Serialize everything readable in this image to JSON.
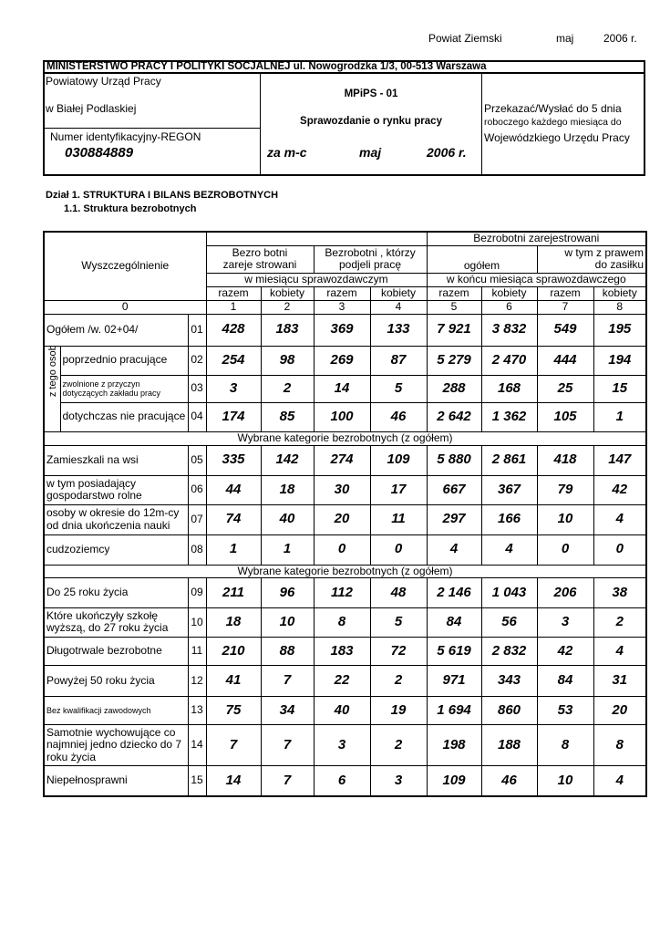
{
  "header": {
    "district": "Powiat Ziemski",
    "month": "maj",
    "year": "2006 r."
  },
  "ministry": "MINISTERSTWO PRACY I POLITYKI SOCJALNEJ ul. Nowogrodzka 1/3, 00-513 Warszawa",
  "office": {
    "name": "Powiatowy  Urząd  Pracy",
    "city": "w Białej Podlaskiej",
    "id_label": "Numer identyfikacyjny-REGON",
    "regon": "030884889"
  },
  "form": {
    "code": "MPiPS - 01",
    "name": "Sprawozdanie o rynku pracy",
    "period_label": "za m-c",
    "month": "maj",
    "year": "2006 r."
  },
  "send": [
    "Przekazać/Wysłać do 5 dnia",
    "roboczego każdego miesiąca do",
    "Wojewódzkiego Urzędu Pracy"
  ],
  "section": "Dział 1. STRUKTURA I BILANS BEZROBOTNYCH",
  "subsection": "1.1. Struktura bezrobotnych",
  "table": {
    "header_label": "Wyszczególnienie",
    "group_header": "Bezrobotni zarejestrowani",
    "col_headers": [
      [
        "Bezro botni",
        "zareje strowani"
      ],
      [
        "Bezrobotni , którzy",
        "podjeli  pracę"
      ],
      [
        "ogółem"
      ],
      [
        "w tym z  prawem",
        "do zasiłku"
      ]
    ],
    "period_headers": [
      "w  miesiącu sprawozdawczym",
      "w końcu  miesiąca sprawozdawczego"
    ],
    "sub_headers": [
      "razem",
      "kobiety",
      "razem",
      "kobiety",
      "razem",
      "kobiety",
      "razem",
      "kobiety"
    ],
    "col_numbers": [
      "0",
      "1",
      "2",
      "3",
      "4",
      "5",
      "6",
      "7",
      "8"
    ],
    "group_label": "z tego osoby",
    "rows": [
      {
        "label": "Ogółem /w. 02+04/",
        "no": "01",
        "values": [
          428,
          183,
          369,
          133,
          "7 921",
          "3 832",
          549,
          195
        ]
      },
      {
        "label": "poprzednio pracujące",
        "no": "02",
        "values": [
          254,
          98,
          269,
          87,
          "5 279",
          "2 470",
          444,
          194
        ]
      },
      {
        "label": "zwolnione z przyczyn dotyczących zakładu pracy",
        "no": "03",
        "values": [
          3,
          2,
          14,
          5,
          288,
          168,
          25,
          15
        ]
      },
      {
        "label": "dotychczas nie pracujące",
        "no": "04",
        "values": [
          174,
          85,
          100,
          46,
          "2 642",
          "1 362",
          105,
          1
        ]
      },
      {
        "note": "Wybrane kategorie bezrobotnych (z ogółem)"
      },
      {
        "label": "Zamieszkali na wsi",
        "no": "05",
        "values": [
          335,
          142,
          274,
          109,
          "5 880",
          "2 861",
          418,
          147
        ]
      },
      {
        "label": "w tym posiadający gospodarstwo rolne",
        "no": "06",
        "values": [
          44,
          18,
          30,
          17,
          667,
          367,
          79,
          42
        ]
      },
      {
        "label": "osoby w okresie do 12m-cy od dnia ukończenia nauki",
        "no": "07",
        "values": [
          74,
          40,
          20,
          11,
          297,
          166,
          10,
          4
        ]
      },
      {
        "label": "cudzoziemcy",
        "no": "08",
        "values": [
          1,
          1,
          0,
          0,
          4,
          4,
          0,
          0
        ]
      },
      {
        "note": "Wybrane kategorie bezrobotnych (z ogółem)"
      },
      {
        "label": "Do 25 roku życia",
        "no": "09",
        "values": [
          211,
          96,
          112,
          48,
          "2 146",
          "1 043",
          206,
          38
        ]
      },
      {
        "label": "Które ukończyły szkołę wyższą, do 27 roku życia",
        "no": "10",
        "values": [
          18,
          10,
          8,
          5,
          84,
          56,
          3,
          2
        ]
      },
      {
        "label": "Długotrwale bezrobotne",
        "no": "11",
        "values": [
          210,
          88,
          183,
          72,
          "5 619",
          "2 832",
          42,
          4
        ]
      },
      {
        "label": "Powyżej 50 roku życia",
        "no": "12",
        "values": [
          41,
          7,
          22,
          2,
          971,
          343,
          84,
          31
        ]
      },
      {
        "label": "Bez kwalifikacji zawodowych",
        "no": "13",
        "values": [
          75,
          34,
          40,
          19,
          "1 694",
          860,
          53,
          20
        ]
      },
      {
        "label": "Samotnie wychowujące co najmniej jedno dziecko do 7 roku życia",
        "no": "14",
        "values": [
          7,
          7,
          3,
          2,
          198,
          188,
          8,
          8
        ]
      },
      {
        "label": "Niepełnosprawni",
        "no": "15",
        "values": [
          14,
          7,
          6,
          3,
          109,
          46,
          10,
          4
        ]
      }
    ]
  }
}
